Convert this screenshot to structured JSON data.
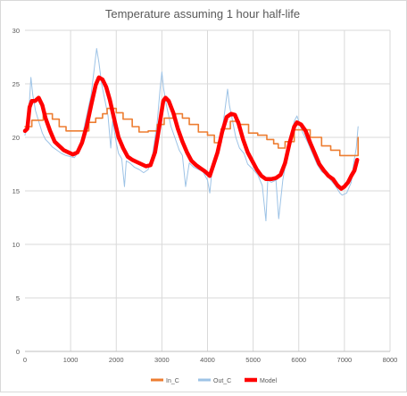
{
  "chart_data": {
    "type": "line",
    "title": "Temperature  assuming 1 hour half-life",
    "xlabel": "",
    "ylabel": "",
    "xlim": [
      0,
      8000
    ],
    "ylim": [
      0,
      30
    ],
    "x_ticks": [
      0,
      1000,
      2000,
      3000,
      4000,
      5000,
      6000,
      7000,
      8000
    ],
    "y_ticks": [
      0,
      5,
      10,
      15,
      20,
      25,
      30
    ],
    "grid": true,
    "legend_position": "bottom",
    "series": [
      {
        "name": "In_C",
        "color": "#ed7d31",
        "style": "step",
        "points": [
          [
            0,
            21.0
          ],
          [
            150,
            21.6
          ],
          [
            400,
            22.2
          ],
          [
            600,
            21.7
          ],
          [
            750,
            21.0
          ],
          [
            900,
            20.6
          ],
          [
            1250,
            20.6
          ],
          [
            1400,
            21.4
          ],
          [
            1550,
            21.8
          ],
          [
            1700,
            22.2
          ],
          [
            1800,
            22.7
          ],
          [
            2000,
            22.3
          ],
          [
            2150,
            21.7
          ],
          [
            2350,
            21.0
          ],
          [
            2500,
            20.5
          ],
          [
            2700,
            20.6
          ],
          [
            2900,
            21.2
          ],
          [
            3050,
            21.8
          ],
          [
            3300,
            22.2
          ],
          [
            3450,
            21.8
          ],
          [
            3600,
            21.2
          ],
          [
            3800,
            20.5
          ],
          [
            4000,
            20.2
          ],
          [
            4150,
            19.5
          ],
          [
            4300,
            20.8
          ],
          [
            4500,
            21.5
          ],
          [
            4700,
            21.2
          ],
          [
            4900,
            20.4
          ],
          [
            5100,
            20.2
          ],
          [
            5300,
            19.8
          ],
          [
            5450,
            19.4
          ],
          [
            5550,
            19.0
          ],
          [
            5700,
            19.6
          ],
          [
            5900,
            20.7
          ],
          [
            6050,
            20.7
          ],
          [
            6250,
            20.0
          ],
          [
            6500,
            19.2
          ],
          [
            6700,
            18.8
          ],
          [
            6900,
            18.3
          ],
          [
            7200,
            18.3
          ],
          [
            7300,
            20.0
          ]
        ]
      },
      {
        "name": "Out_C",
        "color": "#9dc3e6",
        "style": "line",
        "points": [
          [
            0,
            20.2
          ],
          [
            60,
            22.0
          ],
          [
            100,
            23.5
          ],
          [
            130,
            25.6
          ],
          [
            170,
            24.0
          ],
          [
            230,
            22.5
          ],
          [
            300,
            21.5
          ],
          [
            380,
            20.4
          ],
          [
            450,
            19.8
          ],
          [
            520,
            19.5
          ],
          [
            600,
            19.1
          ],
          [
            700,
            18.8
          ],
          [
            800,
            18.5
          ],
          [
            900,
            18.3
          ],
          [
            1000,
            18.2
          ],
          [
            1080,
            18.1
          ],
          [
            1150,
            18.5
          ],
          [
            1250,
            20.0
          ],
          [
            1350,
            22.0
          ],
          [
            1450,
            24.0
          ],
          [
            1520,
            26.5
          ],
          [
            1570,
            28.3
          ],
          [
            1620,
            27.0
          ],
          [
            1680,
            25.0
          ],
          [
            1750,
            23.5
          ],
          [
            1820,
            22.0
          ],
          [
            1880,
            19.0
          ],
          [
            1920,
            21.5
          ],
          [
            2000,
            19.5
          ],
          [
            2050,
            18.5
          ],
          [
            2120,
            18.0
          ],
          [
            2180,
            15.4
          ],
          [
            2220,
            17.8
          ],
          [
            2300,
            17.6
          ],
          [
            2400,
            17.2
          ],
          [
            2500,
            17.0
          ],
          [
            2600,
            16.7
          ],
          [
            2700,
            17.0
          ],
          [
            2800,
            18.5
          ],
          [
            2900,
            21.5
          ],
          [
            2960,
            24.5
          ],
          [
            3000,
            26.1
          ],
          [
            3040,
            24.5
          ],
          [
            3100,
            23.0
          ],
          [
            3200,
            21.0
          ],
          [
            3300,
            19.8
          ],
          [
            3380,
            18.8
          ],
          [
            3450,
            18.3
          ],
          [
            3520,
            15.4
          ],
          [
            3600,
            17.6
          ],
          [
            3700,
            17.2
          ],
          [
            3800,
            17.0
          ],
          [
            3900,
            16.8
          ],
          [
            4000,
            16.0
          ],
          [
            4050,
            14.8
          ],
          [
            4100,
            17.0
          ],
          [
            4200,
            18.5
          ],
          [
            4300,
            20.0
          ],
          [
            4380,
            22.5
          ],
          [
            4440,
            24.5
          ],
          [
            4480,
            23.0
          ],
          [
            4550,
            21.5
          ],
          [
            4620,
            20.0
          ],
          [
            4700,
            19.0
          ],
          [
            4800,
            18.5
          ],
          [
            4880,
            17.5
          ],
          [
            5000,
            17.0
          ],
          [
            5100,
            16.5
          ],
          [
            5200,
            15.5
          ],
          [
            5280,
            12.2
          ],
          [
            5320,
            16.0
          ],
          [
            5400,
            15.8
          ],
          [
            5500,
            16.0
          ],
          [
            5560,
            12.4
          ],
          [
            5650,
            16.0
          ],
          [
            5750,
            18.5
          ],
          [
            5830,
            20.0
          ],
          [
            5900,
            21.5
          ],
          [
            5960,
            22.0
          ],
          [
            6000,
            21.5
          ],
          [
            6080,
            20.5
          ],
          [
            6200,
            19.5
          ],
          [
            6300,
            18.5
          ],
          [
            6400,
            17.5
          ],
          [
            6500,
            16.8
          ],
          [
            6600,
            16.5
          ],
          [
            6700,
            16.0
          ],
          [
            6800,
            15.5
          ],
          [
            6900,
            14.8
          ],
          [
            6950,
            14.6
          ],
          [
            7050,
            14.8
          ],
          [
            7150,
            15.8
          ],
          [
            7200,
            17.5
          ],
          [
            7260,
            19.0
          ],
          [
            7300,
            21.0
          ]
        ]
      },
      {
        "name": "Model",
        "color": "#ff0000",
        "style": "line",
        "points": [
          [
            0,
            20.6
          ],
          [
            50,
            20.8
          ],
          [
            100,
            22.8
          ],
          [
            150,
            23.4
          ],
          [
            220,
            23.4
          ],
          [
            300,
            23.7
          ],
          [
            380,
            23.0
          ],
          [
            450,
            21.8
          ],
          [
            550,
            20.6
          ],
          [
            650,
            19.6
          ],
          [
            750,
            19.2
          ],
          [
            850,
            18.8
          ],
          [
            950,
            18.6
          ],
          [
            1050,
            18.4
          ],
          [
            1150,
            18.6
          ],
          [
            1250,
            19.5
          ],
          [
            1350,
            21.0
          ],
          [
            1450,
            23.0
          ],
          [
            1550,
            24.9
          ],
          [
            1620,
            25.6
          ],
          [
            1700,
            25.4
          ],
          [
            1780,
            24.7
          ],
          [
            1860,
            23.5
          ],
          [
            1950,
            21.8
          ],
          [
            2050,
            20.0
          ],
          [
            2150,
            19.0
          ],
          [
            2250,
            18.2
          ],
          [
            2350,
            17.9
          ],
          [
            2450,
            17.7
          ],
          [
            2550,
            17.5
          ],
          [
            2650,
            17.3
          ],
          [
            2750,
            17.4
          ],
          [
            2850,
            18.6
          ],
          [
            2950,
            21.2
          ],
          [
            3030,
            23.4
          ],
          [
            3080,
            23.7
          ],
          [
            3150,
            23.4
          ],
          [
            3250,
            22.3
          ],
          [
            3350,
            20.8
          ],
          [
            3450,
            19.6
          ],
          [
            3550,
            18.6
          ],
          [
            3650,
            17.8
          ],
          [
            3750,
            17.4
          ],
          [
            3850,
            17.1
          ],
          [
            3950,
            16.8
          ],
          [
            4050,
            16.4
          ],
          [
            4120,
            17.3
          ],
          [
            4220,
            18.6
          ],
          [
            4320,
            20.5
          ],
          [
            4420,
            21.9
          ],
          [
            4520,
            22.2
          ],
          [
            4600,
            22.1
          ],
          [
            4680,
            21.3
          ],
          [
            4780,
            19.8
          ],
          [
            4880,
            18.6
          ],
          [
            4980,
            17.8
          ],
          [
            5080,
            17.0
          ],
          [
            5180,
            16.4
          ],
          [
            5280,
            16.1
          ],
          [
            5400,
            16.1
          ],
          [
            5500,
            16.2
          ],
          [
            5600,
            16.5
          ],
          [
            5700,
            17.6
          ],
          [
            5800,
            19.5
          ],
          [
            5900,
            21.0
          ],
          [
            5960,
            21.4
          ],
          [
            6050,
            21.2
          ],
          [
            6150,
            20.6
          ],
          [
            6250,
            19.5
          ],
          [
            6350,
            18.5
          ],
          [
            6450,
            17.5
          ],
          [
            6550,
            16.9
          ],
          [
            6650,
            16.4
          ],
          [
            6750,
            16.1
          ],
          [
            6850,
            15.5
          ],
          [
            6930,
            15.2
          ],
          [
            7000,
            15.4
          ],
          [
            7080,
            15.8
          ],
          [
            7150,
            16.4
          ],
          [
            7220,
            16.9
          ],
          [
            7280,
            17.9
          ]
        ]
      }
    ]
  }
}
